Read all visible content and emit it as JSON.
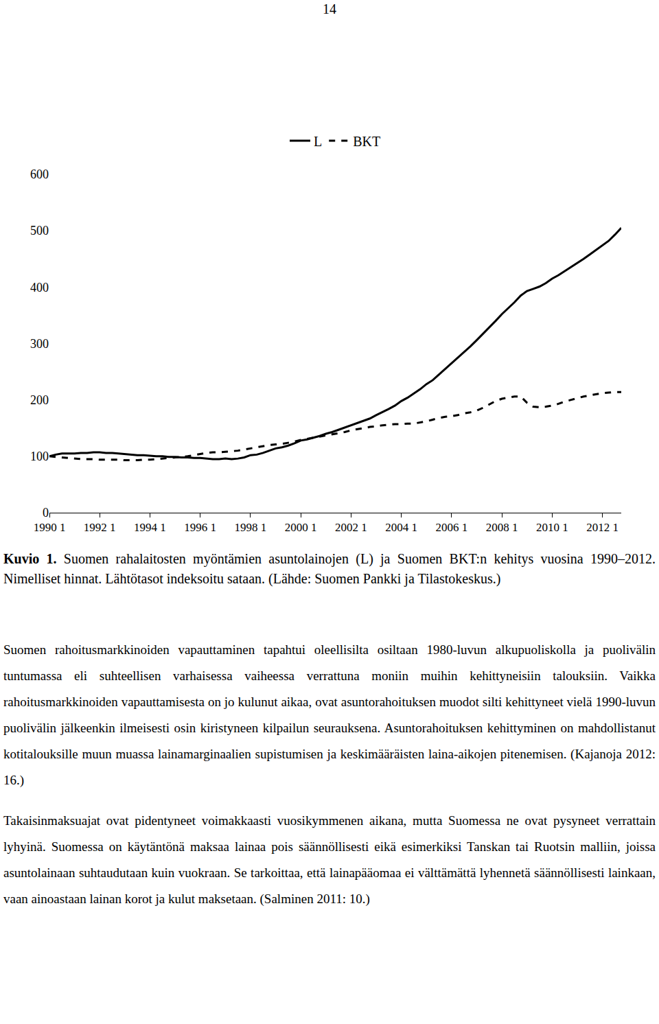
{
  "page_number": "14",
  "chart_data": {
    "type": "line",
    "categories": [
      "1990 1",
      null,
      null,
      null,
      null,
      null,
      null,
      null,
      "1992 1",
      null,
      null,
      null,
      null,
      null,
      null,
      null,
      "1994 1",
      null,
      null,
      null,
      null,
      null,
      null,
      null,
      "1996 1",
      null,
      null,
      null,
      null,
      null,
      null,
      null,
      "1998 1",
      null,
      null,
      null,
      null,
      null,
      null,
      null,
      "2000 1",
      null,
      null,
      null,
      null,
      null,
      null,
      null,
      "2002 1",
      null,
      null,
      null,
      null,
      null,
      null,
      null,
      "2004 1",
      null,
      null,
      null,
      null,
      null,
      null,
      null,
      "2006 1",
      null,
      null,
      null,
      null,
      null,
      null,
      null,
      "2008 1",
      null,
      null,
      null,
      null,
      null,
      null,
      null,
      "2010 1",
      null,
      null,
      null,
      null,
      null,
      null,
      null,
      "2012 1",
      null,
      null,
      null
    ],
    "series": [
      {
        "name": "L",
        "color": "#000000",
        "line_style": "solid",
        "values": [
          100,
          103,
          105,
          105,
          105,
          106,
          106,
          107,
          107,
          106,
          106,
          105,
          104,
          103,
          102,
          102,
          101,
          100,
          100,
          99,
          99,
          98,
          98,
          97,
          97,
          96,
          95,
          95,
          96,
          95,
          96,
          98,
          102,
          103,
          106,
          110,
          114,
          116,
          119,
          123,
          128,
          130,
          133,
          136,
          140,
          143,
          147,
          151,
          155,
          159,
          163,
          167,
          173,
          178,
          184,
          190,
          198,
          204,
          211,
          219,
          228,
          235,
          245,
          255,
          265,
          274,
          284,
          295,
          306,
          317,
          329,
          340,
          352,
          362,
          373,
          385,
          393,
          397,
          401,
          407,
          415,
          421,
          428,
          435,
          443,
          450,
          458,
          466,
          475,
          482,
          493,
          505
        ]
      },
      {
        "name": "BKT",
        "color": "#000000",
        "line_style": "dash",
        "values": [
          100,
          99,
          98,
          97,
          96,
          95,
          95,
          95,
          94,
          94,
          94,
          94,
          93,
          93,
          93,
          94,
          94,
          95,
          96,
          97,
          98,
          99,
          100,
          102,
          104,
          106,
          107,
          107,
          108,
          109,
          110,
          112,
          114,
          116,
          118,
          120,
          121,
          122,
          124,
          126,
          129,
          131,
          133,
          135,
          137,
          139,
          141,
          143,
          146,
          148,
          150,
          152,
          153,
          155,
          156,
          157,
          157,
          158,
          158,
          160,
          162,
          165,
          168,
          170,
          171,
          173,
          176,
          178,
          181,
          186,
          192,
          198,
          202,
          204,
          206,
          206,
          195,
          188,
          187,
          188,
          190,
          193,
          197,
          200,
          203,
          206,
          208,
          210,
          212,
          213,
          214,
          214
        ]
      }
    ],
    "ylim": [
      0,
      600
    ],
    "yticks": [
      0,
      100,
      200,
      300,
      400,
      500,
      600
    ],
    "grid": false,
    "legend": "top"
  },
  "caption": {
    "label": "Kuvio 1.",
    "text": "Suomen rahalaitosten myöntämien asuntolainojen (L) ja Suomen BKT:n kehitys vuosina 1990–2012. Nimelliset hinnat. Lähtötasot indeksoitu sataan. (Lähde: Suomen Pankki ja Tilastokeskus.)"
  },
  "paragraphs": [
    "Suomen rahoitusmarkkinoiden vapauttaminen tapahtui oleellisilta osiltaan 1980-luvun alkupuoliskolla ja puolivälin tuntumassa eli suhteellisen varhaisessa vaiheessa verrattuna moniin muihin kehittyneisiin talouksiin. Vaikka rahoitusmarkkinoiden vapauttamisesta on jo kulunut aikaa, ovat asuntorahoituksen muodot silti kehittyneet vielä 1990-luvun puolivälin jälkeenkin ilmeisesti osin kiristyneen kilpailun seurauksena. Asuntorahoituksen kehittyminen on mahdollistanut kotitalouksille muun muassa lainamarginaalien supistumisen ja keskimääräisten laina-aikojen pitenemisen. (Kajanoja 2012: 16.)",
    "Takaisinmaksuajat ovat pidentyneet voimakkaasti vuosikymmenen aikana, mutta Suomessa ne ovat pysyneet verrattain lyhyinä. Suomessa on käytäntönä maksaa lainaa pois säännöllisesti eikä esimerkiksi Tanskan tai Ruotsin malliin, joissa asuntolainaan suhtaudutaan kuin vuokraan. Se tarkoittaa, että lainapääomaa ei välttämättä lyhennetä säännöllisesti lainkaan, vaan ainoastaan lainan korot ja kulut maksetaan. (Salminen 2011: 10.)"
  ]
}
